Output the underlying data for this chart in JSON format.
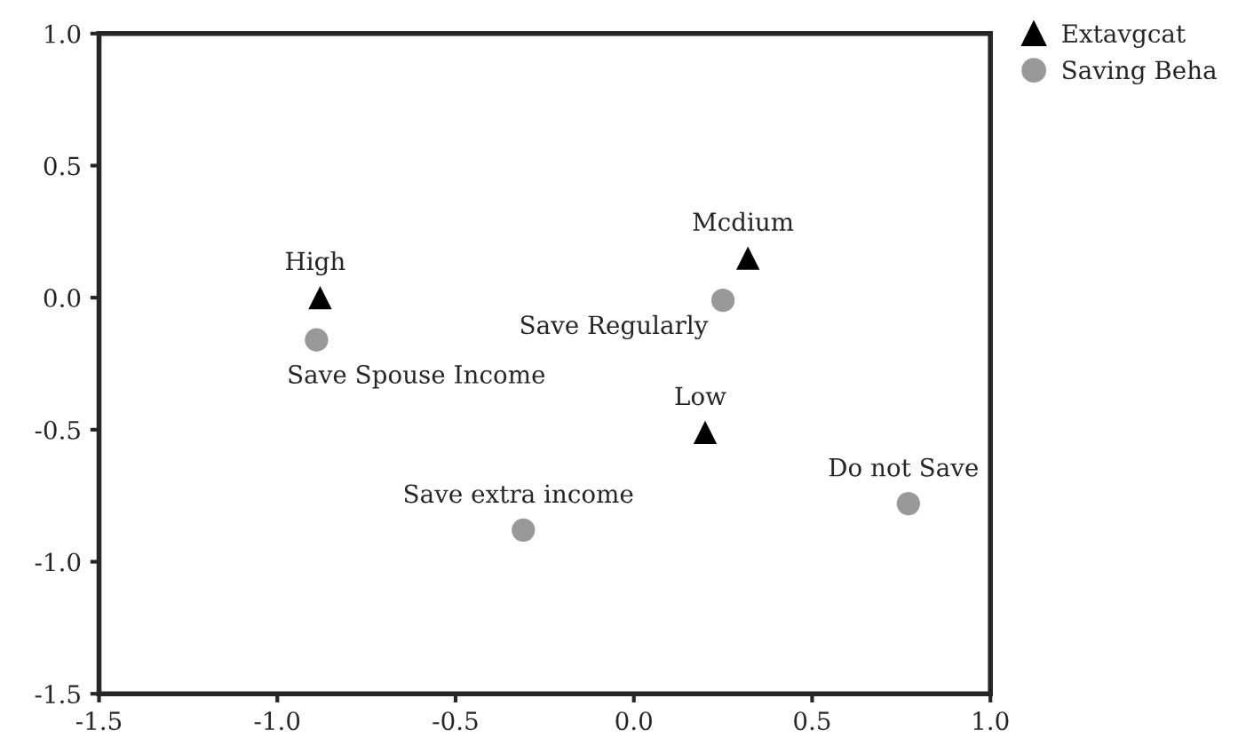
{
  "chart_data": {
    "type": "scatter",
    "series": [
      {
        "name": "Extavgcat",
        "color": "#000000",
        "marker": "triangle",
        "x": [
          -0.88,
          0.32,
          0.2
        ],
        "values": [
          0.0,
          0.15,
          -0.51
        ]
      },
      {
        "name": "Saving Beha",
        "color": "#999999",
        "marker": "circle",
        "x": [
          -0.89,
          0.25,
          -0.31,
          0.77
        ],
        "values": [
          -0.16,
          -0.01,
          -0.88,
          -0.78
        ]
      }
    ],
    "annotations": [
      {
        "text": "High",
        "x": -0.88,
        "y": 0.0
      },
      {
        "text": "Mcdium",
        "x": 0.32,
        "y": 0.15
      },
      {
        "text": "Low",
        "x": 0.2,
        "y": -0.51
      },
      {
        "text": "Save Spouse Income",
        "x": -0.89,
        "y": -0.16
      },
      {
        "text": "Save Regularly",
        "x": 0.25,
        "y": -0.01
      },
      {
        "text": "Save extra income",
        "x": -0.31,
        "y": -0.88
      },
      {
        "text": "Do not Save",
        "x": 0.77,
        "y": -0.78
      }
    ],
    "xlim": [
      -1.5,
      1.0
    ],
    "ylim": [
      -1.5,
      1.0
    ],
    "xticks": [
      {
        "value": -1.5,
        "label": "-1.5"
      },
      {
        "value": -1.0,
        "label": "-1.0"
      },
      {
        "value": -0.5,
        "label": "-0.5"
      },
      {
        "value": 0.0,
        "label": "0.0"
      },
      {
        "value": 0.5,
        "label": "0.5"
      },
      {
        "value": 1.0,
        "label": "1.0"
      }
    ],
    "yticks": [
      {
        "value": -1.5,
        "label": "-1.5"
      },
      {
        "value": -1.0,
        "label": "-1.0"
      },
      {
        "value": -0.5,
        "label": "-0.5"
      },
      {
        "value": 0.0,
        "label": "0.0"
      },
      {
        "value": 0.5,
        "label": "0.5"
      },
      {
        "value": 1.0,
        "label": "1.0"
      }
    ],
    "grid": false,
    "legend": "top right"
  }
}
